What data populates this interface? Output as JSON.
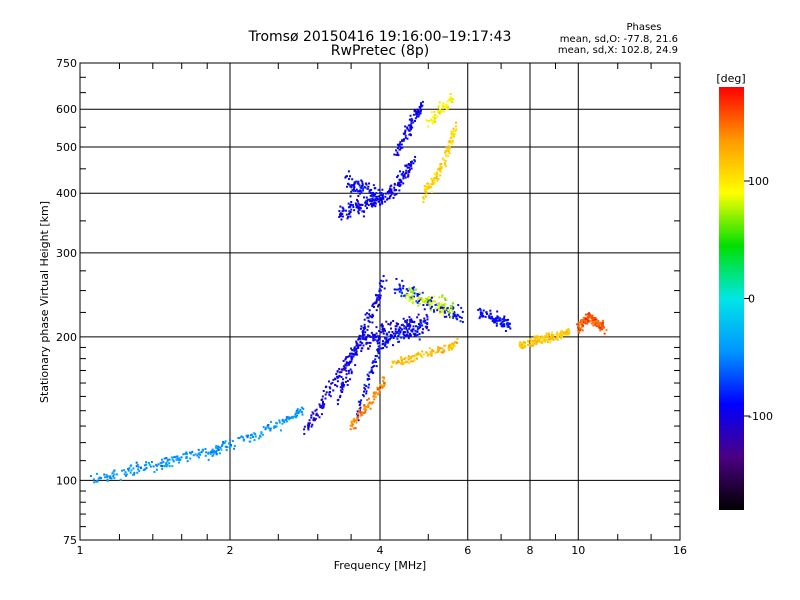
{
  "chart_data": {
    "type": "scatter",
    "title": "Tromsø 20150416 19:16:00–19:17:43",
    "subtitle": "RwPretec (8p)",
    "xlabel": "Frequency [MHz]",
    "ylabel": "Stationary phase Virtual Height [km]",
    "x_scale": "log",
    "y_scale": "log",
    "xlim": [
      1,
      16
    ],
    "ylim": [
      75,
      750
    ],
    "x_ticks": [
      1,
      2,
      4,
      6,
      8,
      10,
      16
    ],
    "y_ticks": [
      75,
      100,
      200,
      300,
      400,
      500,
      600,
      750
    ],
    "x_gridlines": [
      2,
      4,
      6,
      8,
      10
    ],
    "y_gridlines": [
      100,
      200,
      300,
      400,
      500,
      600
    ],
    "grid": true,
    "info": {
      "heading": "Phases",
      "line1": "mean, sd,O: -77.8, 21.6",
      "line2": "mean, sd,X: 102.8, 24.9"
    },
    "colorbar": {
      "title": "[deg]",
      "range": [
        -180,
        180
      ],
      "ticks": [
        100,
        0,
        -100
      ],
      "colors": [
        "#000000",
        "#4b0082",
        "#0000ff",
        "#0096ff",
        "#00e6e6",
        "#00e000",
        "#ffff00",
        "#ff9900",
        "#ff0000"
      ]
    },
    "traces": [
      {
        "x": [
          1.05,
          1.2,
          1.35,
          1.5,
          1.65,
          1.85,
          2.0,
          2.3,
          2.6,
          2.8
        ],
        "y": [
          100,
          103,
          107,
          109,
          112,
          115,
          119,
          126,
          134,
          140
        ],
        "phase": -45,
        "spread_y": 0.02
      },
      {
        "x": [
          2.8,
          3.0,
          3.2,
          3.4,
          3.6,
          3.8,
          4.0,
          4.3,
          4.6,
          5.0
        ],
        "y": [
          125,
          140,
          158,
          175,
          190,
          198,
          203,
          208,
          212,
          216
        ],
        "phase": -100,
        "spread_y": 0.03
      },
      {
        "x": [
          3.3,
          3.5,
          3.7,
          3.9,
          4.1
        ],
        "y": [
          150,
          175,
          205,
          235,
          260
        ],
        "phase": -95,
        "spread_y": 0.035
      },
      {
        "x": [
          3.6,
          3.8,
          4.0,
          4.3,
          4.6,
          5.0
        ],
        "y": [
          135,
          165,
          190,
          200,
          205,
          210
        ],
        "phase": -90,
        "spread_y": 0.03
      },
      {
        "x": [
          3.5,
          3.7,
          3.9,
          4.1
        ],
        "y": [
          130,
          140,
          150,
          162
        ],
        "phase": 140,
        "spread_y": 0.02
      },
      {
        "x": [
          4.2,
          4.6,
          5.0,
          5.5,
          5.7
        ],
        "y": [
          175,
          180,
          185,
          190,
          195
        ],
        "phase": 120,
        "spread_y": 0.015
      },
      {
        "x": [
          4.3,
          4.7,
          5.1,
          5.5,
          5.9
        ],
        "y": [
          255,
          245,
          235,
          225,
          222
        ],
        "phase": -85,
        "spread_y": 0.03
      },
      {
        "x": [
          4.5,
          4.9,
          5.3,
          5.6
        ],
        "y": [
          245,
          238,
          232,
          228
        ],
        "phase": 80,
        "spread_y": 0.03
      },
      {
        "x": [
          3.3,
          3.5,
          3.7,
          3.9,
          4.1,
          4.3,
          4.5,
          4.7
        ],
        "y": [
          360,
          370,
          375,
          385,
          395,
          410,
          440,
          470
        ],
        "phase": -95,
        "spread_y": 0.025
      },
      {
        "x": [
          3.4,
          3.6,
          3.8,
          4.0
        ],
        "y": [
          430,
          415,
          400,
          390
        ],
        "phase": -90,
        "spread_y": 0.04
      },
      {
        "x": [
          4.3,
          4.5,
          4.7,
          4.9
        ],
        "y": [
          480,
          530,
          580,
          620
        ],
        "phase": -95,
        "spread_y": 0.025
      },
      {
        "x": [
          4.9,
          5.1,
          5.3,
          5.5,
          5.7
        ],
        "y": [
          395,
          420,
          450,
          500,
          560
        ],
        "phase": 110,
        "spread_y": 0.02
      },
      {
        "x": [
          5.0,
          5.3,
          5.6
        ],
        "y": [
          560,
          600,
          630
        ],
        "phase": 95,
        "spread_y": 0.025
      },
      {
        "x": [
          6.3,
          6.7,
          7.0,
          7.3
        ],
        "y": [
          225,
          220,
          215,
          212
        ],
        "phase": -90,
        "spread_y": 0.02
      },
      {
        "x": [
          7.6,
          8.0,
          8.4,
          8.8,
          9.2,
          9.6
        ],
        "y": [
          192,
          195,
          197,
          200,
          202,
          205
        ],
        "phase": 115,
        "spread_y": 0.015
      },
      {
        "x": [
          10.0,
          10.3,
          10.6,
          11.0,
          11.3
        ],
        "y": [
          210,
          215,
          220,
          212,
          208
        ],
        "phase": 155,
        "spread_y": 0.02
      }
    ]
  }
}
